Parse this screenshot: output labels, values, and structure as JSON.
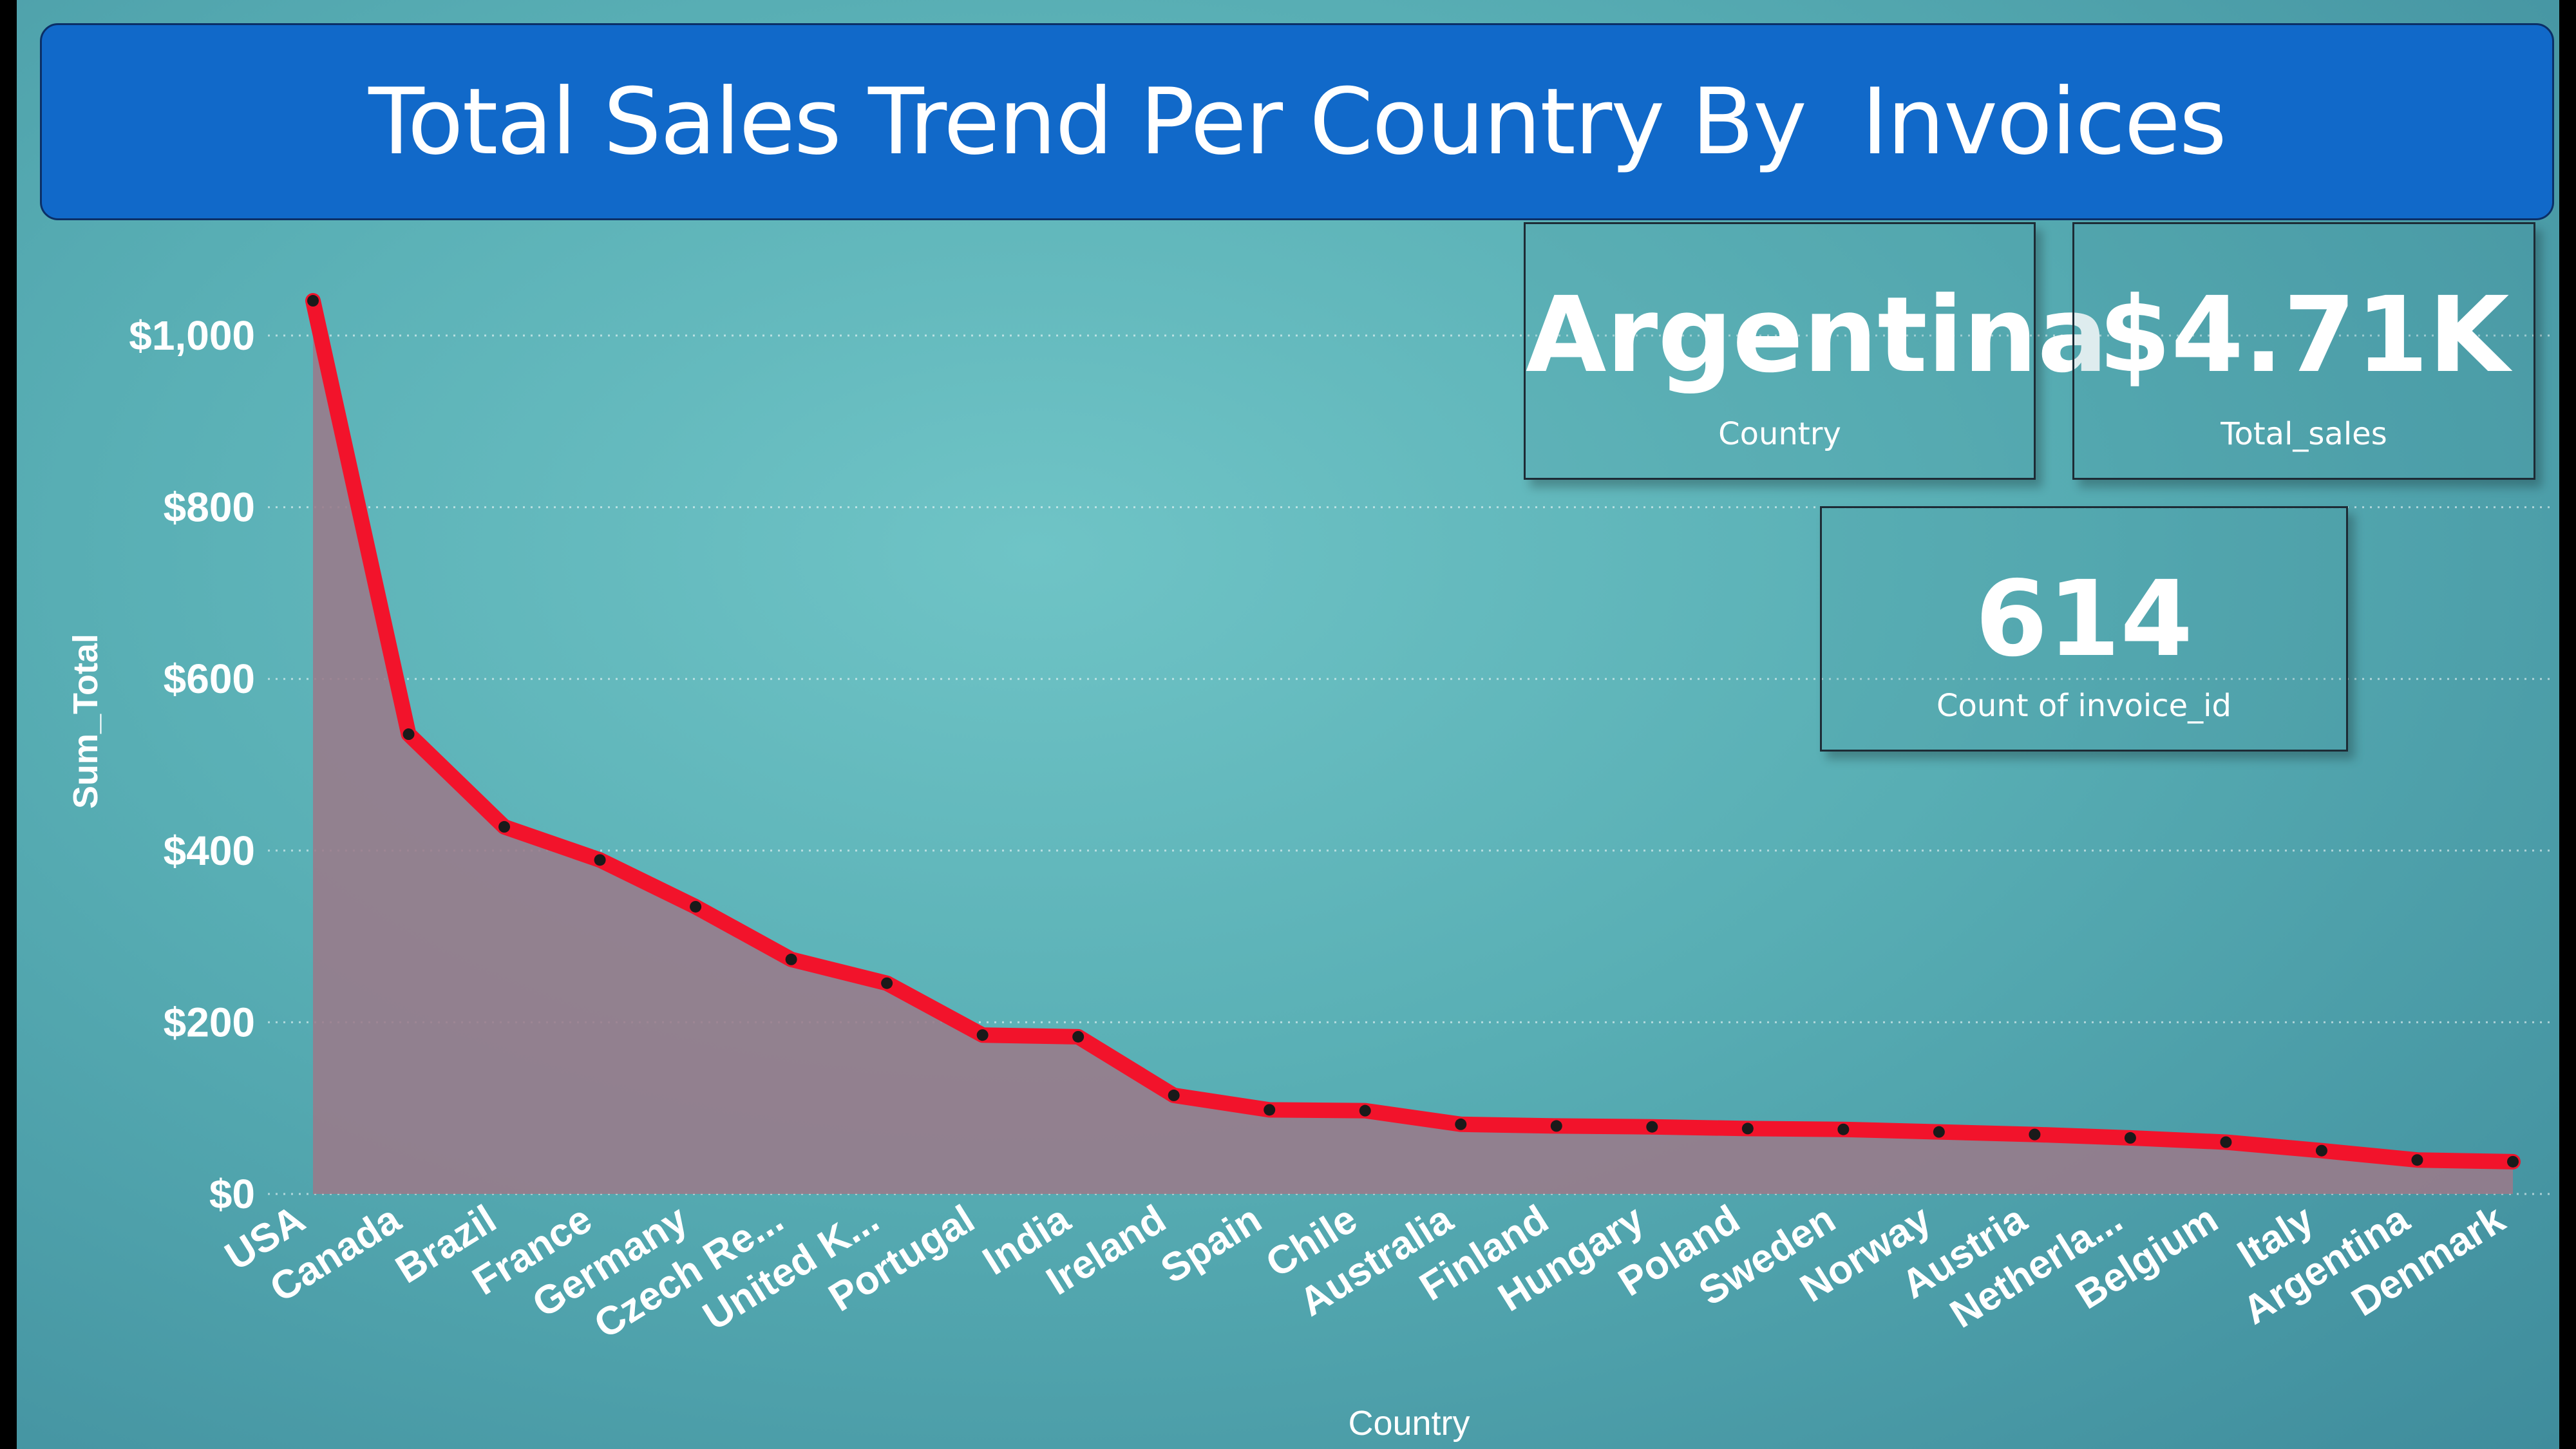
{
  "title": "Total Sales Trend Per Country By  Invoices",
  "cards": {
    "country": {
      "value": "Argentina",
      "label": "Country"
    },
    "total_sales": {
      "value": "$4.71K",
      "label": "Total_sales"
    },
    "count": {
      "value": "614",
      "label": "Count of invoice_id"
    }
  },
  "colors": {
    "line": "#f2132b",
    "area": "#9a7a8a",
    "title_bg": "#1169c9"
  },
  "chart_data": {
    "type": "area",
    "categories": [
      "USA",
      "Canada",
      "Brazil",
      "France",
      "Germany",
      "Czech Re...",
      "United K...",
      "Portugal",
      "India",
      "Ireland",
      "Spain",
      "Chile",
      "Australia",
      "Finland",
      "Hungary",
      "Poland",
      "Sweden",
      "Norway",
      "Austria",
      "Netherla...",
      "Belgium",
      "Italy",
      "Argentina",
      "Denmark"
    ],
    "series": [
      {
        "values": [
          1040.49,
          535.59,
          427.68,
          389.07,
          334.62,
          273.24,
          245.52,
          185.13,
          183.15,
          114.84,
          98.01,
          97.02,
          81.18,
          79.2,
          78.21,
          76.23,
          75.24,
          72.27,
          69.3,
          65.34,
          60.39,
          50.49,
          39.6,
          37.62
        ]
      }
    ],
    "xlabel": "Country",
    "ylabel": "Sum_Total",
    "yticks": [
      "$0",
      "$200",
      "$400",
      "$600",
      "$800",
      "$1,000"
    ],
    "ylim": [
      0,
      1000
    ],
    "grid": true
  }
}
